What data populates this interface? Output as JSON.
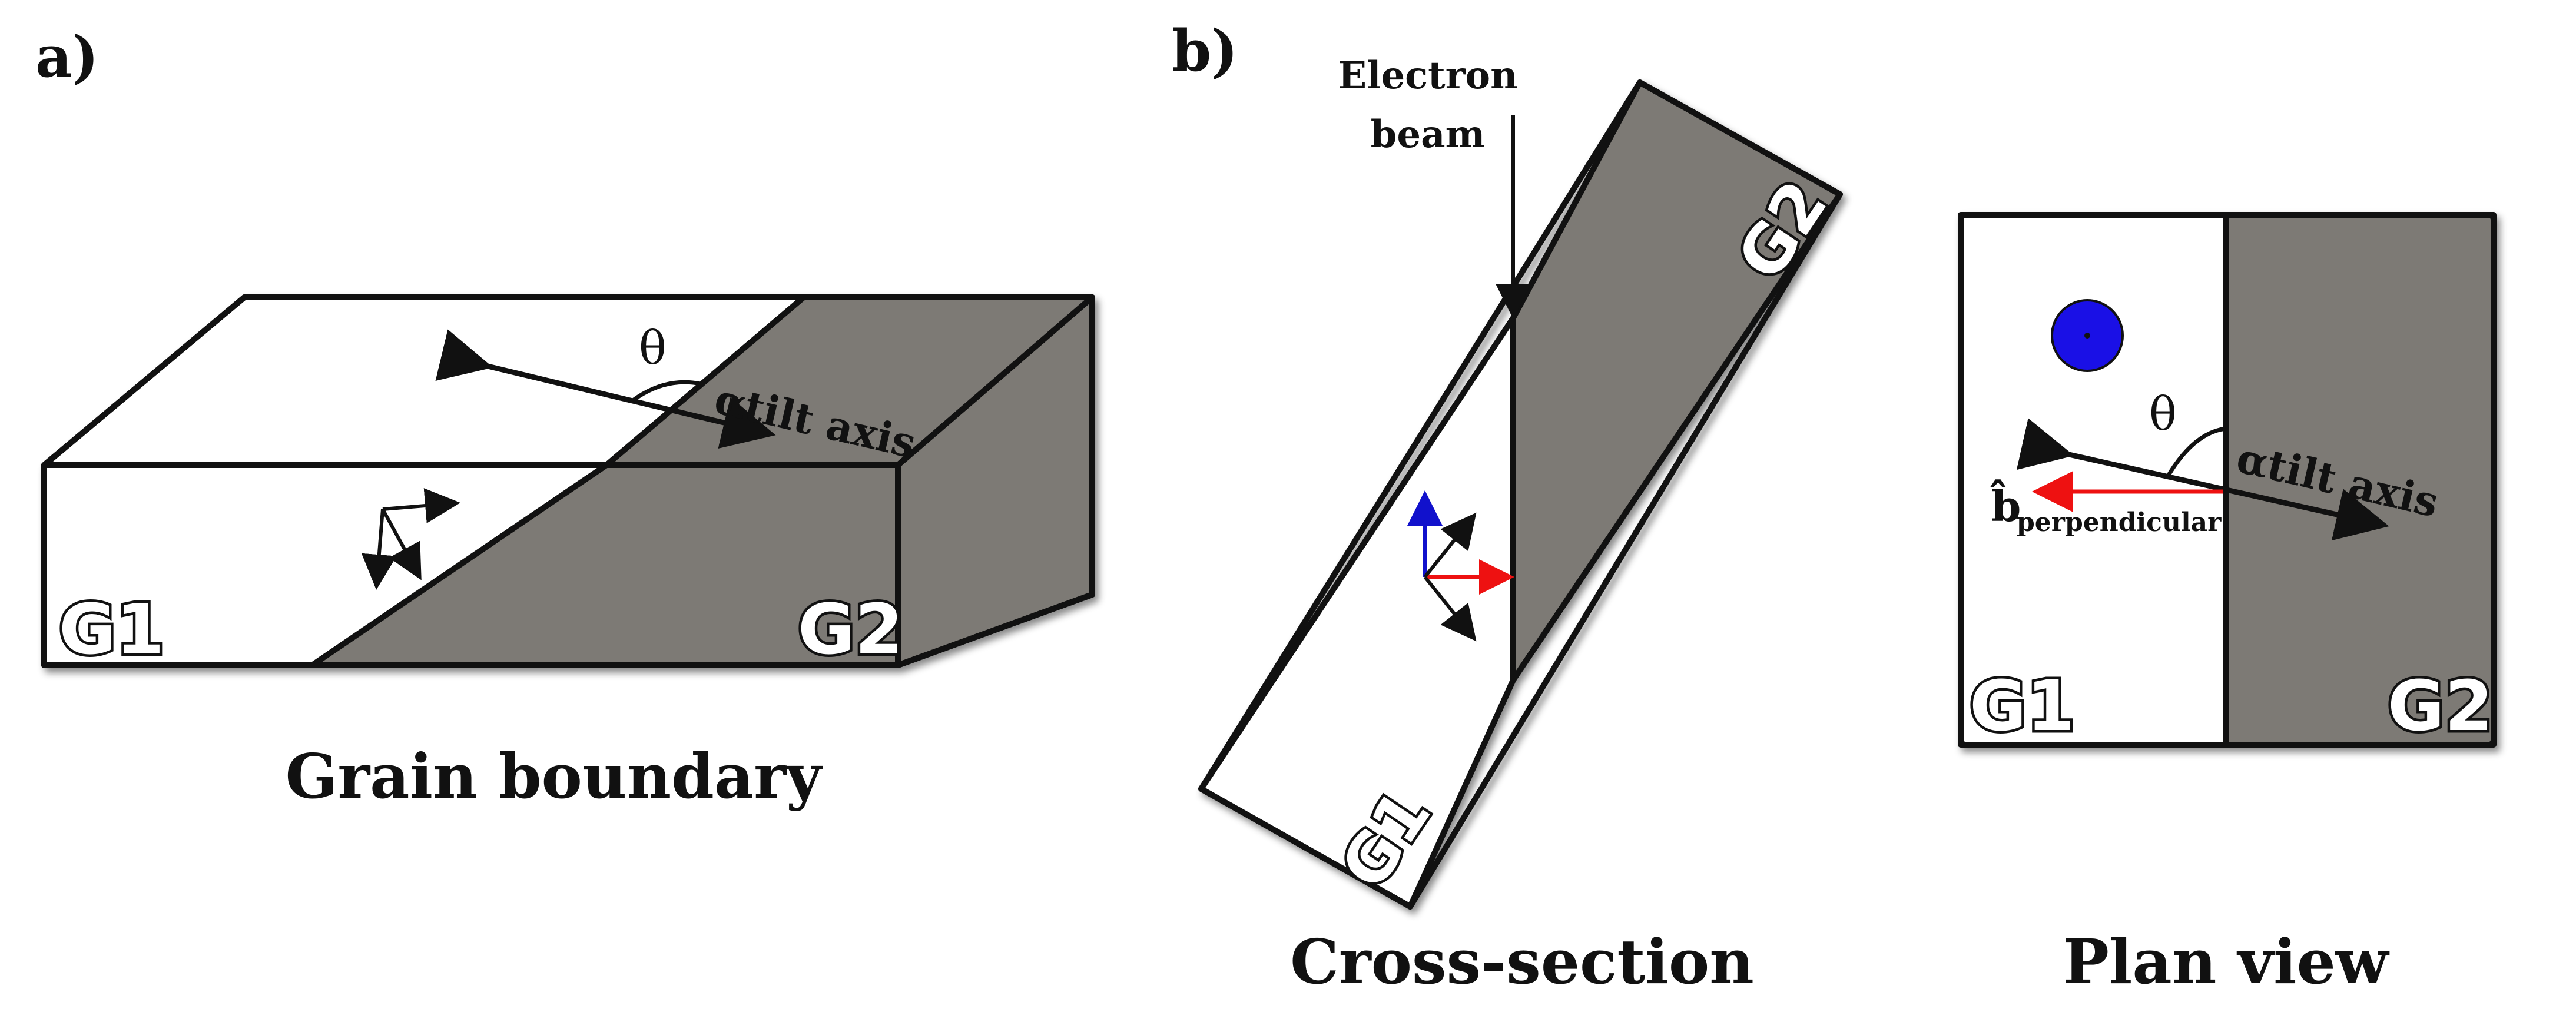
{
  "panels": {
    "a": {
      "label": "a)",
      "caption": "Grain boundary",
      "grain_left": "G1",
      "grain_right": "G2",
      "theta": "θ",
      "alpha": "α",
      "tilt_axis": "tilt axis"
    },
    "b": {
      "label": "b)",
      "beam_line1": "Electron",
      "beam_line2": "beam",
      "cross_caption": "Cross-section",
      "plan_caption": "Plan view",
      "cross_grain_left": "G1",
      "cross_grain_right": "G2",
      "plan_grain_left": "G1",
      "plan_grain_right": "G2",
      "theta": "θ",
      "alpha": "α",
      "tilt_axis": "tilt axis",
      "b_hat": "b̂",
      "b_sub": "perpendicular"
    }
  },
  "colors": {
    "grain_dark": "#7d7a75",
    "outline": "#111111",
    "vector_red": "#ee1111",
    "vector_blue": "#1111cc",
    "beam_spot": "#1a10e6"
  }
}
